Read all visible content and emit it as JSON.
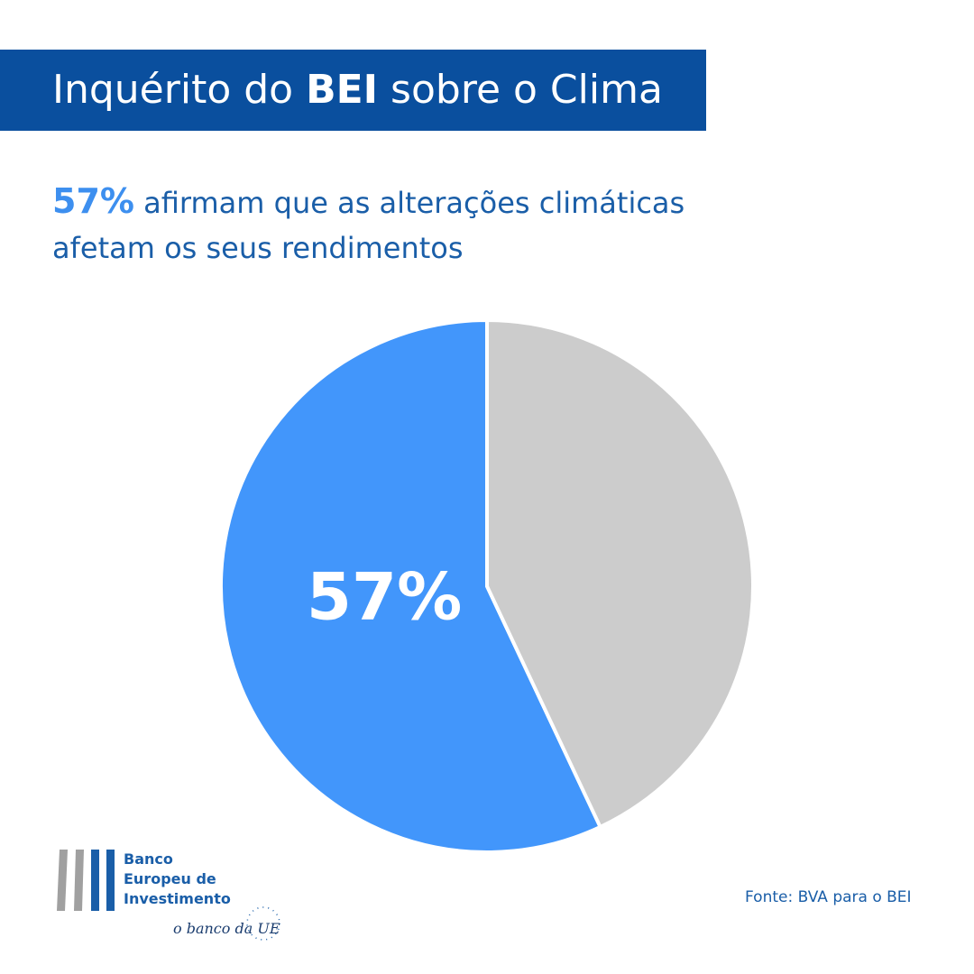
{
  "chart_data": {
    "type": "pie",
    "title": {
      "before": "Inquérito do",
      "bold": "BEI",
      "after": "sobre o Clima"
    },
    "subtitle": [
      "afirmam que as alterações climáticas",
      "afetam os seus rendimentos"
    ],
    "values": [
      57,
      43
    ],
    "value_labels": [
      "57%",
      null
    ],
    "colors": [
      "#4296fb",
      "#cccccc"
    ],
    "source": "Fonte: BVA para o BEI",
    "logo": {
      "lines": [
        "Banco",
        "Europeu de",
        "Investimento"
      ],
      "tagline": "o banco da UE"
    }
  }
}
